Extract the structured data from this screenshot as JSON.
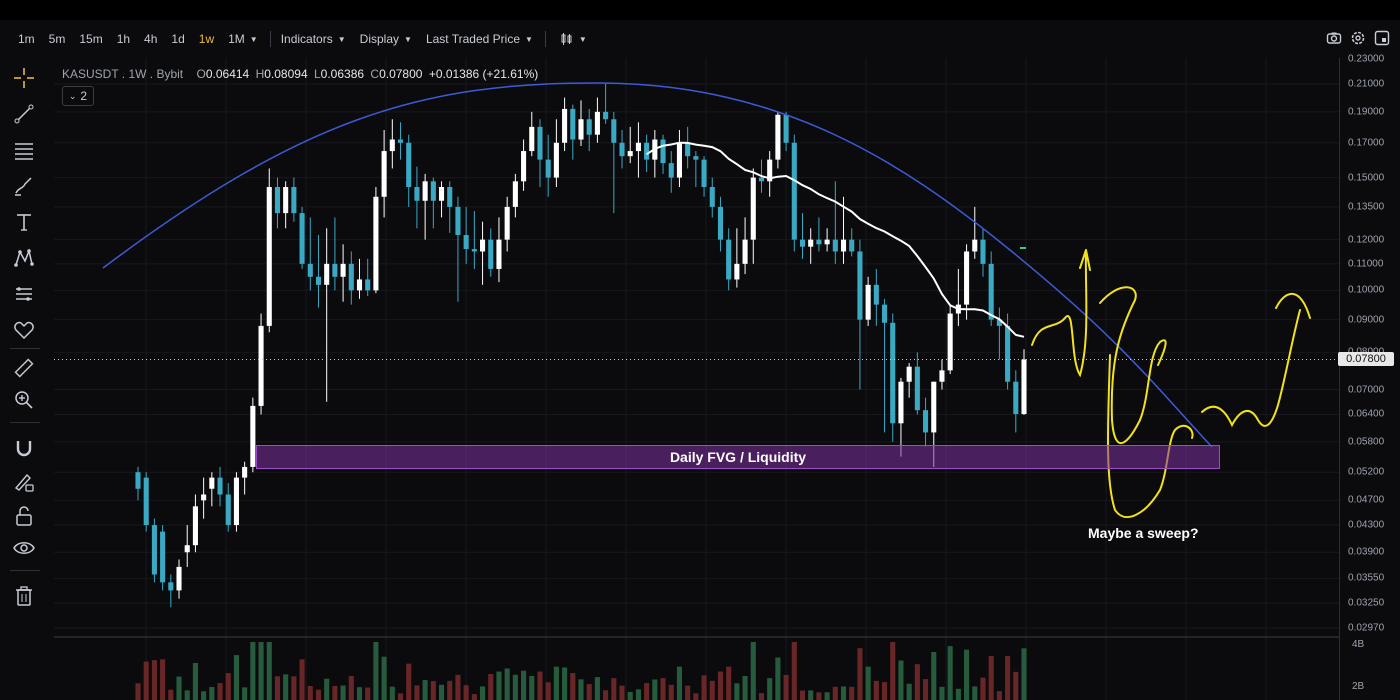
{
  "toolbar": {
    "timeframes": [
      "1m",
      "5m",
      "15m",
      "1h",
      "4h",
      "1d",
      "1w",
      "1M"
    ],
    "active_timeframe": "1w",
    "indicators_label": "Indicators",
    "display_label": "Display",
    "price_type_label": "Last Traded Price"
  },
  "legend": {
    "symbol": "KASUSDT . 1W . Bybit",
    "open_label": "O",
    "open": "0.06414",
    "high_label": "H",
    "high": "0.08094",
    "low_label": "L",
    "low": "0.06386",
    "close_label": "C",
    "close": "0.07800",
    "change": "+0.01386 (+21.61%)",
    "collapsed_count": "2"
  },
  "price_axis": {
    "ticks": [
      "0.23000",
      "0.21000",
      "0.19000",
      "0.17000",
      "0.15000",
      "0.13500",
      "0.12000",
      "0.11000",
      "0.10000",
      "0.09000",
      "0.08000",
      "0.07000",
      "0.06400",
      "0.05800",
      "0.05200",
      "0.04700",
      "0.04300",
      "0.03900",
      "0.03550",
      "0.03250",
      "0.02970"
    ],
    "current_price": "0.07800"
  },
  "volume_axis": {
    "ticks": [
      "4B",
      "2B"
    ]
  },
  "annotations": {
    "zone_label": "Daily FVG / Liquidity",
    "note": "Maybe a sweep?"
  },
  "colors": {
    "up": "#ffffff",
    "down": "#3aa9c4",
    "curve": "#3d5bd6",
    "ma": "#ffffff",
    "zone": "#7a2f99",
    "drawing": "#f2e21a",
    "active_tf": "#e8b93a"
  },
  "chart_data": {
    "type": "candlestick",
    "series": [
      {
        "o": 0.052,
        "h": 0.053,
        "l": 0.047,
        "c": 0.049
      },
      {
        "o": 0.051,
        "h": 0.052,
        "l": 0.042,
        "c": 0.043
      },
      {
        "o": 0.043,
        "h": 0.044,
        "l": 0.035,
        "c": 0.036
      },
      {
        "o": 0.042,
        "h": 0.043,
        "l": 0.034,
        "c": 0.035
      },
      {
        "o": 0.035,
        "h": 0.036,
        "l": 0.032,
        "c": 0.034
      },
      {
        "o": 0.034,
        "h": 0.038,
        "l": 0.033,
        "c": 0.037
      },
      {
        "o": 0.039,
        "h": 0.043,
        "l": 0.037,
        "c": 0.04
      },
      {
        "o": 0.04,
        "h": 0.048,
        "l": 0.039,
        "c": 0.046
      },
      {
        "o": 0.047,
        "h": 0.051,
        "l": 0.044,
        "c": 0.048
      },
      {
        "o": 0.049,
        "h": 0.052,
        "l": 0.046,
        "c": 0.051
      },
      {
        "o": 0.051,
        "h": 0.053,
        "l": 0.046,
        "c": 0.048
      },
      {
        "o": 0.048,
        "h": 0.05,
        "l": 0.042,
        "c": 0.043
      },
      {
        "o": 0.043,
        "h": 0.052,
        "l": 0.042,
        "c": 0.051
      },
      {
        "o": 0.051,
        "h": 0.054,
        "l": 0.048,
        "c": 0.053
      },
      {
        "o": 0.053,
        "h": 0.068,
        "l": 0.052,
        "c": 0.066
      },
      {
        "o": 0.066,
        "h": 0.092,
        "l": 0.064,
        "c": 0.088
      },
      {
        "o": 0.088,
        "h": 0.155,
        "l": 0.086,
        "c": 0.145
      },
      {
        "o": 0.145,
        "h": 0.15,
        "l": 0.125,
        "c": 0.132
      },
      {
        "o": 0.132,
        "h": 0.148,
        "l": 0.125,
        "c": 0.145
      },
      {
        "o": 0.145,
        "h": 0.15,
        "l": 0.128,
        "c": 0.132
      },
      {
        "o": 0.132,
        "h": 0.135,
        "l": 0.108,
        "c": 0.11
      },
      {
        "o": 0.11,
        "h": 0.13,
        "l": 0.1,
        "c": 0.105
      },
      {
        "o": 0.105,
        "h": 0.122,
        "l": 0.094,
        "c": 0.102
      },
      {
        "o": 0.102,
        "h": 0.125,
        "l": 0.067,
        "c": 0.11
      },
      {
        "o": 0.11,
        "h": 0.13,
        "l": 0.1,
        "c": 0.105
      },
      {
        "o": 0.105,
        "h": 0.118,
        "l": 0.096,
        "c": 0.11
      },
      {
        "o": 0.11,
        "h": 0.115,
        "l": 0.095,
        "c": 0.1
      },
      {
        "o": 0.1,
        "h": 0.112,
        "l": 0.097,
        "c": 0.104
      },
      {
        "o": 0.104,
        "h": 0.112,
        "l": 0.098,
        "c": 0.1
      },
      {
        "o": 0.1,
        "h": 0.145,
        "l": 0.099,
        "c": 0.14
      },
      {
        "o": 0.14,
        "h": 0.178,
        "l": 0.13,
        "c": 0.165
      },
      {
        "o": 0.165,
        "h": 0.185,
        "l": 0.155,
        "c": 0.172
      },
      {
        "o": 0.172,
        "h": 0.183,
        "l": 0.16,
        "c": 0.17
      },
      {
        "o": 0.17,
        "h": 0.175,
        "l": 0.135,
        "c": 0.145
      },
      {
        "o": 0.145,
        "h": 0.156,
        "l": 0.125,
        "c": 0.138
      },
      {
        "o": 0.138,
        "h": 0.152,
        "l": 0.12,
        "c": 0.148
      },
      {
        "o": 0.148,
        "h": 0.15,
        "l": 0.125,
        "c": 0.138
      },
      {
        "o": 0.138,
        "h": 0.148,
        "l": 0.13,
        "c": 0.145
      },
      {
        "o": 0.145,
        "h": 0.148,
        "l": 0.123,
        "c": 0.135
      },
      {
        "o": 0.135,
        "h": 0.14,
        "l": 0.096,
        "c": 0.122
      },
      {
        "o": 0.122,
        "h": 0.135,
        "l": 0.11,
        "c": 0.116
      },
      {
        "o": 0.116,
        "h": 0.133,
        "l": 0.108,
        "c": 0.115
      },
      {
        "o": 0.115,
        "h": 0.128,
        "l": 0.102,
        "c": 0.12
      },
      {
        "o": 0.12,
        "h": 0.125,
        "l": 0.105,
        "c": 0.108
      },
      {
        "o": 0.108,
        "h": 0.13,
        "l": 0.103,
        "c": 0.12
      },
      {
        "o": 0.12,
        "h": 0.14,
        "l": 0.115,
        "c": 0.135
      },
      {
        "o": 0.135,
        "h": 0.152,
        "l": 0.13,
        "c": 0.148
      },
      {
        "o": 0.148,
        "h": 0.172,
        "l": 0.143,
        "c": 0.165
      },
      {
        "o": 0.165,
        "h": 0.19,
        "l": 0.162,
        "c": 0.18
      },
      {
        "o": 0.18,
        "h": 0.185,
        "l": 0.145,
        "c": 0.16
      },
      {
        "o": 0.16,
        "h": 0.175,
        "l": 0.14,
        "c": 0.15
      },
      {
        "o": 0.15,
        "h": 0.185,
        "l": 0.145,
        "c": 0.17
      },
      {
        "o": 0.17,
        "h": 0.2,
        "l": 0.165,
        "c": 0.192
      },
      {
        "o": 0.192,
        "h": 0.195,
        "l": 0.16,
        "c": 0.172
      },
      {
        "o": 0.172,
        "h": 0.198,
        "l": 0.168,
        "c": 0.185
      },
      {
        "o": 0.185,
        "h": 0.192,
        "l": 0.165,
        "c": 0.175
      },
      {
        "o": 0.175,
        "h": 0.2,
        "l": 0.17,
        "c": 0.19
      },
      {
        "o": 0.19,
        "h": 0.21,
        "l": 0.182,
        "c": 0.185
      },
      {
        "o": 0.185,
        "h": 0.19,
        "l": 0.132,
        "c": 0.17
      },
      {
        "o": 0.17,
        "h": 0.178,
        "l": 0.155,
        "c": 0.162
      },
      {
        "o": 0.162,
        "h": 0.18,
        "l": 0.158,
        "c": 0.165
      },
      {
        "o": 0.165,
        "h": 0.183,
        "l": 0.15,
        "c": 0.17
      },
      {
        "o": 0.17,
        "h": 0.175,
        "l": 0.153,
        "c": 0.16
      },
      {
        "o": 0.16,
        "h": 0.178,
        "l": 0.15,
        "c": 0.172
      },
      {
        "o": 0.172,
        "h": 0.175,
        "l": 0.152,
        "c": 0.158
      },
      {
        "o": 0.158,
        "h": 0.165,
        "l": 0.142,
        "c": 0.15
      },
      {
        "o": 0.15,
        "h": 0.178,
        "l": 0.145,
        "c": 0.17
      },
      {
        "o": 0.17,
        "h": 0.18,
        "l": 0.155,
        "c": 0.162
      },
      {
        "o": 0.162,
        "h": 0.165,
        "l": 0.145,
        "c": 0.16
      },
      {
        "o": 0.16,
        "h": 0.162,
        "l": 0.14,
        "c": 0.145
      },
      {
        "o": 0.145,
        "h": 0.15,
        "l": 0.13,
        "c": 0.135
      },
      {
        "o": 0.135,
        "h": 0.14,
        "l": 0.115,
        "c": 0.12
      },
      {
        "o": 0.12,
        "h": 0.125,
        "l": 0.1,
        "c": 0.104
      },
      {
        "o": 0.104,
        "h": 0.125,
        "l": 0.101,
        "c": 0.11
      },
      {
        "o": 0.11,
        "h": 0.13,
        "l": 0.106,
        "c": 0.12
      },
      {
        "o": 0.12,
        "h": 0.155,
        "l": 0.11,
        "c": 0.15
      },
      {
        "o": 0.15,
        "h": 0.16,
        "l": 0.142,
        "c": 0.148
      },
      {
        "o": 0.148,
        "h": 0.165,
        "l": 0.14,
        "c": 0.16
      },
      {
        "o": 0.16,
        "h": 0.19,
        "l": 0.155,
        "c": 0.188
      },
      {
        "o": 0.188,
        "h": 0.19,
        "l": 0.165,
        "c": 0.17
      },
      {
        "o": 0.17,
        "h": 0.175,
        "l": 0.115,
        "c": 0.12
      },
      {
        "o": 0.12,
        "h": 0.132,
        "l": 0.112,
        "c": 0.117
      },
      {
        "o": 0.117,
        "h": 0.125,
        "l": 0.11,
        "c": 0.12
      },
      {
        "o": 0.12,
        "h": 0.13,
        "l": 0.115,
        "c": 0.118
      },
      {
        "o": 0.118,
        "h": 0.125,
        "l": 0.115,
        "c": 0.12
      },
      {
        "o": 0.12,
        "h": 0.148,
        "l": 0.11,
        "c": 0.115
      },
      {
        "o": 0.115,
        "h": 0.14,
        "l": 0.11,
        "c": 0.12
      },
      {
        "o": 0.12,
        "h": 0.125,
        "l": 0.113,
        "c": 0.115
      },
      {
        "o": 0.115,
        "h": 0.12,
        "l": 0.07,
        "c": 0.09
      },
      {
        "o": 0.09,
        "h": 0.105,
        "l": 0.088,
        "c": 0.102
      },
      {
        "o": 0.102,
        "h": 0.108,
        "l": 0.088,
        "c": 0.095
      },
      {
        "o": 0.095,
        "h": 0.097,
        "l": 0.06,
        "c": 0.089
      },
      {
        "o": 0.089,
        "h": 0.092,
        "l": 0.058,
        "c": 0.062
      },
      {
        "o": 0.062,
        "h": 0.073,
        "l": 0.055,
        "c": 0.072
      },
      {
        "o": 0.072,
        "h": 0.077,
        "l": 0.068,
        "c": 0.076
      },
      {
        "o": 0.076,
        "h": 0.08,
        "l": 0.064,
        "c": 0.065
      },
      {
        "o": 0.065,
        "h": 0.068,
        "l": 0.057,
        "c": 0.06
      },
      {
        "o": 0.06,
        "h": 0.072,
        "l": 0.053,
        "c": 0.072
      },
      {
        "o": 0.072,
        "h": 0.078,
        "l": 0.07,
        "c": 0.075
      },
      {
        "o": 0.075,
        "h": 0.095,
        "l": 0.074,
        "c": 0.092
      },
      {
        "o": 0.092,
        "h": 0.108,
        "l": 0.088,
        "c": 0.095
      },
      {
        "o": 0.095,
        "h": 0.118,
        "l": 0.09,
        "c": 0.115
      },
      {
        "o": 0.115,
        "h": 0.135,
        "l": 0.112,
        "c": 0.12
      },
      {
        "o": 0.12,
        "h": 0.125,
        "l": 0.105,
        "c": 0.11
      },
      {
        "o": 0.11,
        "h": 0.115,
        "l": 0.088,
        "c": 0.09
      },
      {
        "o": 0.09,
        "h": 0.094,
        "l": 0.078,
        "c": 0.088
      },
      {
        "o": 0.088,
        "h": 0.092,
        "l": 0.07,
        "c": 0.072
      },
      {
        "o": 0.072,
        "h": 0.075,
        "l": 0.06,
        "c": 0.0641
      },
      {
        "o": 0.0641,
        "h": 0.0809,
        "l": 0.0639,
        "c": 0.078
      }
    ],
    "ylim": [
      0.0297,
      0.23
    ],
    "scale": "log"
  }
}
